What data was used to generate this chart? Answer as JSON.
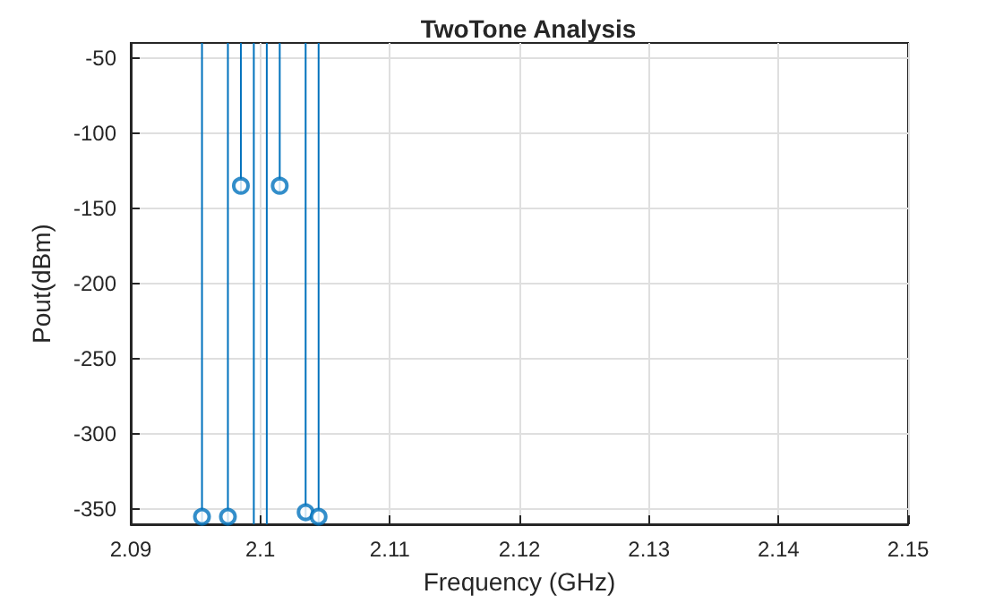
{
  "chart_data": {
    "type": "lollipop",
    "title": "TwoTone Analysis",
    "xlabel": "Frequency (GHz)",
    "ylabel": "Pout(dBm)",
    "x": [
      2.0955,
      2.0975,
      2.0985,
      2.1015,
      2.1035,
      2.1045
    ],
    "series": [
      {
        "color": "#0072bd",
        "values": [
          -355,
          -355,
          -135,
          -135,
          -352,
          -355
        ]
      }
    ],
    "ref_lines": [
      {
        "axis": "x",
        "value": 2.0995,
        "color": "#0072bd"
      },
      {
        "axis": "x",
        "value": 2.1005,
        "color": "#0072bd"
      }
    ],
    "xlim": [
      2.09,
      2.15
    ],
    "xticks": [
      2.09,
      2.1,
      2.11,
      2.12,
      2.13,
      2.14,
      2.15
    ],
    "ylim": [
      -360,
      -40
    ],
    "yticks": [
      -350,
      -300,
      -250,
      -200,
      -150,
      -100,
      -50
    ],
    "grid": true,
    "marker": "circle"
  }
}
